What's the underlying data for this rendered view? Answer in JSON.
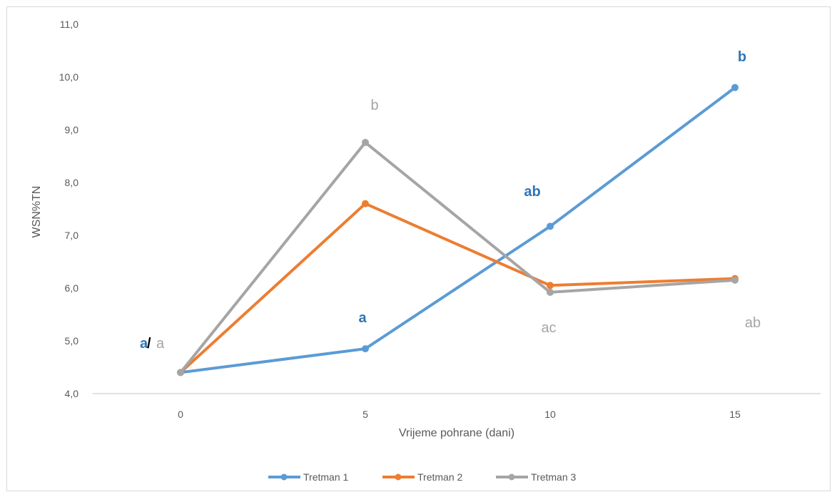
{
  "chart_data": {
    "type": "line",
    "title": "",
    "xlabel": "Vrijeme pohrane (dani)",
    "ylabel": "WSN%TN",
    "categories": [
      "0",
      "5",
      "10",
      "15"
    ],
    "ylim": [
      4.0,
      11.0
    ],
    "yticks": [
      "4,0",
      "5,0",
      "6,0",
      "7,0",
      "8,0",
      "9,0",
      "10,0",
      "11,0"
    ],
    "grid": false,
    "legend_position": "bottom",
    "series": [
      {
        "name": "Tretman 1",
        "color": "#5b9bd5",
        "values": [
          4.4,
          4.85,
          7.17,
          9.8
        ]
      },
      {
        "name": "Tretman 2",
        "color": "#ed7d31",
        "values": [
          4.4,
          7.6,
          6.05,
          6.18
        ]
      },
      {
        "name": "Tretman 3",
        "color": "#a5a5a5",
        "values": [
          4.4,
          8.76,
          5.92,
          6.15
        ]
      }
    ],
    "annotations": [
      {
        "text": "a",
        "series": "Tretman 1",
        "category": "0",
        "color": "#2e75b6",
        "bold": true
      },
      {
        "text": "/",
        "series": "",
        "category": "0",
        "color": "#000000",
        "bold": true
      },
      {
        "text": "a",
        "series": "Tretman 3",
        "category": "0",
        "color": "#a5a5a5",
        "bold": false
      },
      {
        "text": "a",
        "series": "Tretman 1",
        "category": "5",
        "color": "#2e75b6",
        "bold": true
      },
      {
        "text": "b",
        "series": "Tretman 3",
        "category": "5",
        "color": "#a5a5a5",
        "bold": false
      },
      {
        "text": "ab",
        "series": "Tretman 1",
        "category": "10",
        "color": "#2e75b6",
        "bold": true
      },
      {
        "text": "ac",
        "series": "Tretman 3",
        "category": "10",
        "color": "#a5a5a5",
        "bold": false
      },
      {
        "text": "b",
        "series": "Tretman 1",
        "category": "15",
        "color": "#2e75b6",
        "bold": true
      },
      {
        "text": "ab",
        "series": "Tretman 3",
        "category": "15",
        "color": "#a5a5a5",
        "bold": false
      }
    ]
  }
}
